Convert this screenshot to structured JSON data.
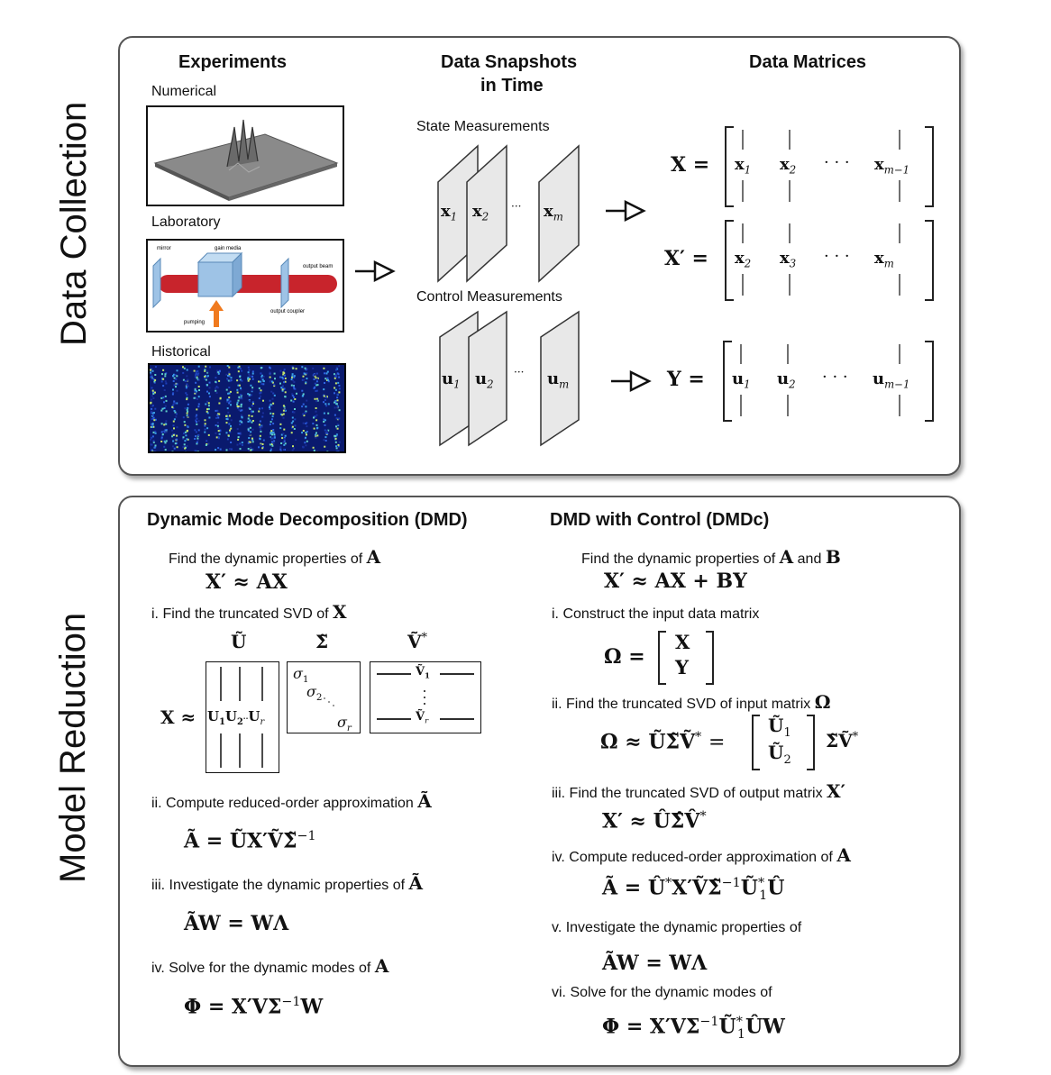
{
  "sections": {
    "data_collection": "Data Collection",
    "model_reduction": "Model Reduction"
  },
  "experiments": {
    "heading": "Experiments",
    "numerical": "Numerical",
    "laboratory": "Laboratory",
    "historical": "Historical",
    "laser": {
      "mirror": "mirror",
      "gain_media": "gain media",
      "output_beam": "output beam",
      "output_coupler": "output coupler",
      "pumping": "pumping"
    }
  },
  "snapshots": {
    "heading_line1": "Data Snapshots",
    "heading_line2": "in Time",
    "state_label": "State Measurements",
    "control_label": "Control Measurements",
    "state": [
      "x",
      "1",
      "x",
      "2",
      "x",
      "m"
    ],
    "control": [
      "u",
      "1",
      "u",
      "2",
      "u",
      "m"
    ],
    "dots": "···"
  },
  "matrices": {
    "heading": "Data Matrices",
    "X_lhs": "X =",
    "Xp_lhs": "X′ =",
    "Ups_lhs": "Υ =",
    "X_cols": [
      "x",
      "1",
      "x",
      "2",
      "x",
      "m−1"
    ],
    "Xp_cols": [
      "x",
      "2",
      "x",
      "3",
      "x",
      "m"
    ],
    "Ups_cols": [
      "u",
      "1",
      "u",
      "2",
      "u",
      "m−1"
    ],
    "dots": "· · ·"
  },
  "dmd": {
    "heading": "Dynamic Mode Decomposition (DMD)",
    "find_text": "Find the dynamic properties of",
    "find_sym": "A",
    "model_eq": "X′ ≈ AX",
    "step1_text": "i. Find the truncated SVD of",
    "step1_sym": "X",
    "svd_U": "Ũ",
    "svd_S": "Σ̃",
    "svd_V": "Ṽ",
    "svd_star": "*",
    "svd_lhs": "X ≈",
    "u_cols": [
      "U",
      "1",
      "U",
      "2",
      "U",
      "r"
    ],
    "sigmas": [
      "σ",
      "1",
      "σ",
      "2",
      "σ",
      "r"
    ],
    "v_rows": [
      "Ṽ",
      "1",
      "Ṽ",
      "r"
    ],
    "step2_text": "ii. Compute reduced-order approximation",
    "step2_sym": "Ã",
    "step2_eq": "Ã = ŨX′ṼΣ̃",
    "step2_sup": "−1",
    "step3_text": "iii. Investigate the dynamic properties of",
    "step3_sym": "Ã",
    "step3_eq": "ÃW = WΛ",
    "step4_text": "iv. Solve for the dynamic modes of",
    "step4_sym": "A",
    "step4_eq": "Φ = X′VΣ",
    "step4_sup": "−1",
    "step4_tail": "W"
  },
  "dmdc": {
    "heading": "DMD with Control (DMDc)",
    "find_text": "Find the dynamic properties of",
    "find_sym_a": "A",
    "find_and": "and",
    "find_sym_b": "B",
    "model_eq": "X′ ≈ AX + BΥ",
    "step1_text": "i. Construct the input data matrix",
    "omega_lhs": "Ω =",
    "omega_top": "X",
    "omega_bot": "Υ",
    "step2_text": "ii. Find the truncated SVD of input matrix",
    "step2_sym": "Ω",
    "svd_in_lhs": "Ω ≈ ŨΣ̃Ṽ",
    "svd_in_star": "*",
    "svd_in_eq": "=",
    "u1": "Ũ",
    "u1_sub": "1",
    "u2": "Ũ",
    "u2_sub": "2",
    "svd_in_tail": "Σ̃Ṽ",
    "svd_in_tail_star": "*",
    "step3_text": "iii. Find the truncated SVD of output matrix",
    "step3_sym": "X′",
    "step3_eq": "X′ ≈ ÛΣ̂V̂",
    "step3_star": "*",
    "step4_text": "iv. Compute reduced-order approximation of",
    "step4_sym": "A",
    "step4_eq_a": "Ã = Û",
    "step4_eq_sup1": "*",
    "step4_eq_b": "X′ṼΣ̃",
    "step4_eq_sup2": "−1",
    "step4_eq_c": "Ũ",
    "step4_eq_sup3": "*",
    "step4_eq_sub3": "1",
    "step4_eq_d": "Û",
    "step5_text": "v. Investigate the dynamic properties of",
    "step5_eq": "ÃW = WΛ",
    "step6_text": "vi. Solve for the dynamic modes of",
    "step6_eq_a": "Φ = X′VΣ",
    "step6_sup1": "−1",
    "step6_eq_b": "Ũ",
    "step6_sup2": "*",
    "step6_sub2": "1",
    "step6_eq_c": "ÛW"
  },
  "colors": {
    "laser_red": "#c8242c",
    "gain_blue": "#9ec3e6",
    "pump_orange": "#f07a1e",
    "heatmap_dark": "#0a1a6e",
    "snapshot_gray": "#e8e8e8"
  }
}
